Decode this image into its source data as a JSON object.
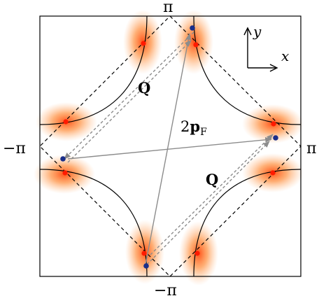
{
  "labels": {
    "pi_top": "π",
    "pi_bottom": "−π",
    "pi_left": "−π",
    "pi_right": "π",
    "q_upper": "Q",
    "q_lower": "Q",
    "two_pf_prefix": "2",
    "two_pf_bold": "p",
    "two_pf_sub": "F",
    "axis_x": "x",
    "axis_y": "y"
  },
  "colors": {
    "hotspot": "#ff2a00",
    "hotspot_glow": "#ff7a1a",
    "blue_dot": "#1a2f8a",
    "arrow_gray": "#8c8c8c",
    "frame": "#000000"
  },
  "icons": {
    "axes": "xy-axes-icon"
  }
}
